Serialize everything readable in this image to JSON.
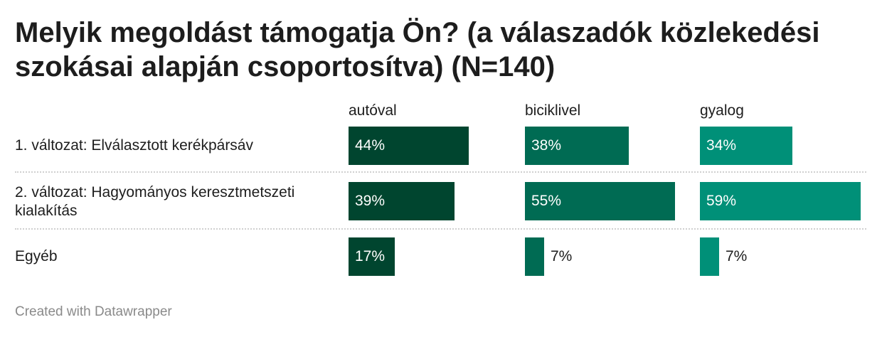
{
  "title": "Melyik megoldást támogatja Ön? (a válaszadók közlekedési szokásai alapján csoportosítva) (N=140)",
  "footer": "Created with Datawrapper",
  "chart_data": {
    "type": "bar",
    "title": "Melyik megoldást támogatja Ön? (a válaszadók közlekedési szokásai alapján csoportosítva) (N=140)",
    "categories": [
      "1. változat: Elválasztott kerékpársáv",
      "2. változat: Hagyományos keresztmetszeti kialakítás",
      "Egyéb"
    ],
    "series": [
      {
        "name": "autóval",
        "color": "#00452f",
        "values": [
          44,
          39,
          17
        ],
        "labels": [
          "44%",
          "39%",
          "17%"
        ]
      },
      {
        "name": "biciklivel",
        "color": "#006b53",
        "values": [
          38,
          55,
          7
        ],
        "labels": [
          "38%",
          "55%",
          "7%"
        ]
      },
      {
        "name": "gyalog",
        "color": "#009078",
        "values": [
          34,
          59,
          7
        ],
        "labels": [
          "34%",
          "59%",
          "7%"
        ]
      }
    ],
    "unit": "%",
    "xlim": [
      0,
      59
    ],
    "grid": false,
    "legend": "column headers"
  }
}
